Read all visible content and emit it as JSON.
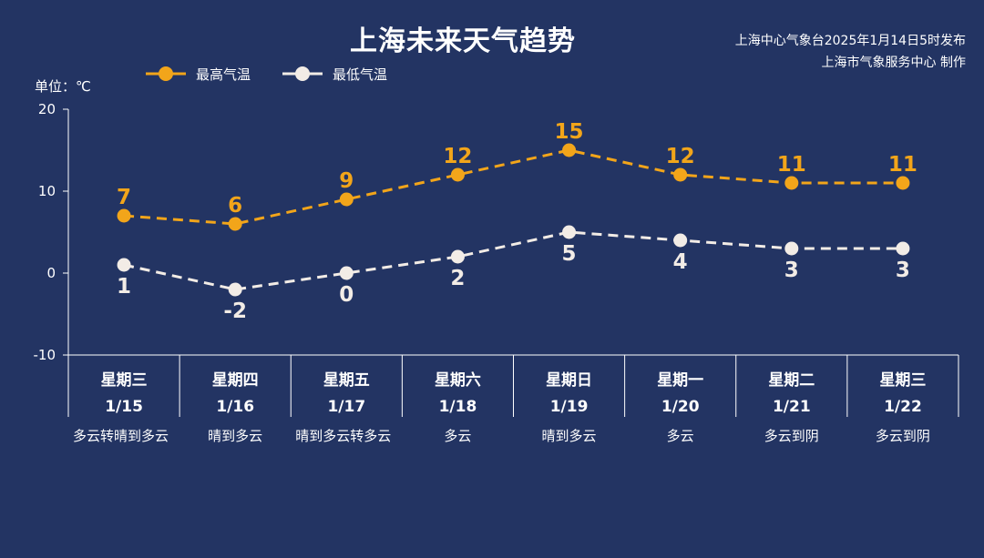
{
  "header": {
    "title": "上海未来天气趋势",
    "source_line1": "上海中心气象台2025年1月14日5时发布",
    "source_line2": "上海市气象服务中心 制作"
  },
  "unit_label": "单位：℃",
  "colors": {
    "background": "#233463",
    "high": "#f2a51a",
    "low": "#f2ece6",
    "axis": "#ffffff"
  },
  "chart_data": {
    "type": "line",
    "categories": [
      [
        "星期三",
        "1/15"
      ],
      [
        "星期四",
        "1/16"
      ],
      [
        "星期五",
        "1/17"
      ],
      [
        "星期六",
        "1/18"
      ],
      [
        "星期日",
        "1/19"
      ],
      [
        "星期一",
        "1/20"
      ],
      [
        "星期二",
        "1/21"
      ],
      [
        "星期三",
        "1/22"
      ]
    ],
    "series": [
      {
        "name": "最高气温",
        "values": [
          7,
          6,
          9,
          12,
          15,
          12,
          11,
          11
        ],
        "color": "#f2a51a",
        "label_position": "above"
      },
      {
        "name": "最低气温",
        "values": [
          1,
          -2,
          0,
          2,
          5,
          4,
          3,
          3
        ],
        "color": "#f2ece6",
        "label_position": "below"
      }
    ],
    "ylim": [
      -10,
      20
    ],
    "yticks": [
      -10,
      0,
      10,
      20
    ],
    "ylabel": "单位：℃",
    "line_style": "dashed",
    "legend_position": "top-left",
    "grid": false
  },
  "weather": [
    "多云转晴到多云",
    "晴到多云",
    "晴到多云转多云",
    "多云",
    "晴到多云",
    "多云",
    "多云到阴",
    "多云到阴"
  ]
}
